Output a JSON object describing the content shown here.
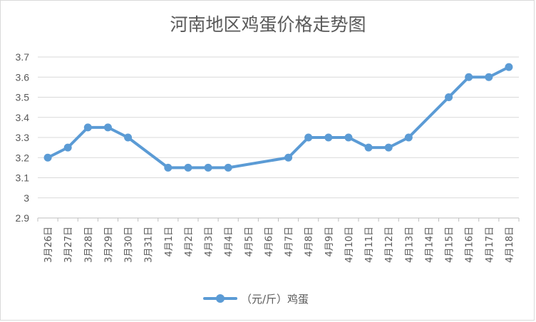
{
  "chart_data": {
    "type": "line",
    "title": "河南地区鸡蛋价格走势图",
    "xlabel": "",
    "ylabel": "",
    "ylim": [
      2.9,
      3.7
    ],
    "yticks": [
      "2.9",
      "3",
      "3.1",
      "3.2",
      "3.3",
      "3.4",
      "3.5",
      "3.6",
      "3.7"
    ],
    "grid": true,
    "legend_position": "bottom",
    "categories": [
      "3月26日",
      "3月27日",
      "3月28日",
      "3月29日",
      "3月30日",
      "3月31日",
      "4月1日",
      "4月2日",
      "4月3日",
      "4月4日",
      "4月5日",
      "4月6日",
      "4月7日",
      "4月8日",
      "4月9日",
      "4月10日",
      "4月11日",
      "4月12日",
      "4月13日",
      "4月14日",
      "4月15日",
      "4月16日",
      "4月17日",
      "4月18日"
    ],
    "series": [
      {
        "name": "（元/斤）鸡蛋",
        "color": "#5b9bd5",
        "values": [
          3.2,
          3.25,
          3.35,
          3.35,
          3.3,
          null,
          3.15,
          3.15,
          3.15,
          3.15,
          null,
          null,
          3.2,
          3.3,
          3.3,
          3.3,
          3.25,
          3.25,
          3.3,
          null,
          3.5,
          3.6,
          3.6,
          3.65
        ]
      }
    ]
  }
}
